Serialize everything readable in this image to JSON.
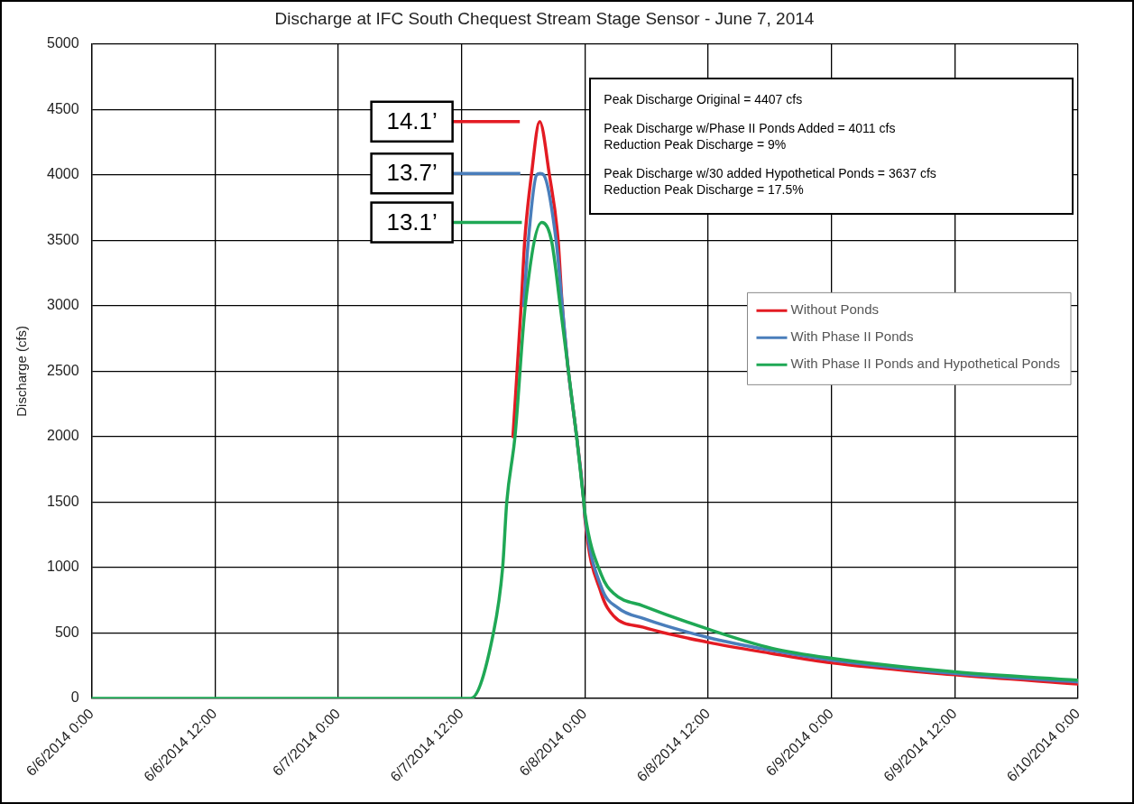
{
  "chart_data": {
    "type": "line",
    "title": "Discharge at IFC South Chequest Stream Stage Sensor - June 7, 2014",
    "ylabel": "Discharge (cfs)",
    "xlim": [
      "2014-06-06T00:00",
      "2014-06-10T00:00"
    ],
    "xticks": [
      {
        "value": "2014-06-06T00:00",
        "label": "6/6/2014 0:00"
      },
      {
        "value": "2014-06-06T12:00",
        "label": "6/6/2014 12:00"
      },
      {
        "value": "2014-06-07T00:00",
        "label": "6/7/2014 0:00"
      },
      {
        "value": "2014-06-07T12:00",
        "label": "6/7/2014 12:00"
      },
      {
        "value": "2014-06-08T00:00",
        "label": "6/8/2014 0:00"
      },
      {
        "value": "2014-06-08T12:00",
        "label": "6/8/2014 12:00"
      },
      {
        "value": "2014-06-09T00:00",
        "label": "6/9/2014 0:00"
      },
      {
        "value": "2014-06-09T12:00",
        "label": "6/9/2014 12:00"
      },
      {
        "value": "2014-06-10T00:00",
        "label": "6/10/2014 0:00"
      }
    ],
    "ylim": [
      0,
      5000
    ],
    "yticks": [
      0,
      500,
      1000,
      1500,
      2000,
      2500,
      3000,
      3500,
      4000,
      4500,
      5000
    ],
    "grid": true,
    "legend": "right",
    "marker": "none",
    "line_style": "solid",
    "series": [
      {
        "name": "Without Ponds",
        "color": "#e31b23",
        "x": [
          "2014-06-07T17:00",
          "2014-06-07T17:48",
          "2014-06-07T18:09",
          "2014-06-07T18:48",
          "2014-06-07T19:36",
          "2014-06-07T20:33",
          "2014-06-07T21:24",
          "2014-06-07T21:48",
          "2014-06-07T22:24",
          "2014-06-07T23:12",
          "2014-06-07T23:54",
          "2014-06-08T00:00",
          "2014-06-08T01:36",
          "2014-06-08T02:48",
          "2014-06-08T05:42",
          "2014-06-08T12:00",
          "2014-06-08T18:12",
          "2014-06-09T00:00",
          "2014-06-09T12:00",
          "2014-06-10T00:00"
        ],
        "values": [
          2000,
          3000,
          3500,
          4000,
          4407,
          4000,
          3500,
          3000,
          2500,
          2000,
          1500,
          1380,
          802,
          630,
          543,
          428,
          343,
          271,
          180,
          110
        ]
      },
      {
        "name": "With Phase II Ponds",
        "color": "#4a7ebb",
        "x": [
          "2014-06-07T18:03",
          "2014-06-07T18:30",
          "2014-06-07T19:18",
          "2014-06-07T19:39",
          "2014-06-07T20:00",
          "2014-06-07T21:12",
          "2014-06-07T21:48",
          "2014-06-07T22:24",
          "2014-06-07T23:12",
          "2014-06-07T23:54",
          "2014-06-08T00:00",
          "2014-06-08T01:36",
          "2014-06-08T03:15",
          "2014-06-08T05:42",
          "2014-06-08T12:00",
          "2014-06-08T18:12",
          "2014-06-09T00:00",
          "2014-06-09T12:00",
          "2014-06-10T00:00"
        ],
        "values": [
          3000,
          3500,
          4000,
          4011,
          4000,
          3500,
          3000,
          2500,
          2000,
          1500,
          1400,
          850,
          690,
          610,
          465,
          366,
          292,
          190,
          125
        ]
      },
      {
        "name": "With Phase II Ponds and Hypothetical Ponds",
        "color": "#1fa855",
        "x": [
          "2014-06-06T00:00",
          "2014-06-07T12:00",
          "2014-06-07T12:54",
          "2014-06-07T15:06",
          "2014-06-07T16:00",
          "2014-06-07T16:24",
          "2014-06-07T17:12",
          "2014-06-07T18:12",
          "2014-06-07T19:48",
          "2014-06-07T20:45",
          "2014-06-07T21:36",
          "2014-06-07T22:24",
          "2014-06-07T23:12",
          "2014-06-07T23:54",
          "2014-06-08T00:00",
          "2014-06-08T01:36",
          "2014-06-08T02:48",
          "2014-06-08T05:42",
          "2014-06-08T12:00",
          "2014-06-08T18:12",
          "2014-06-09T00:00",
          "2014-06-09T12:00",
          "2014-06-10T00:00"
        ],
        "values": [
          0,
          0,
          0,
          500,
          1000,
          1500,
          2000,
          3000,
          3637,
          3500,
          3000,
          2500,
          2000,
          1500,
          1420,
          945,
          802,
          706,
          529,
          383,
          306,
          203,
          139
        ]
      }
    ],
    "annotations": [
      "14.1’",
      "13.7’",
      "13.1’",
      "Peak Discharge Original = 4407 cfs",
      "Peak Discharge w/Phase II Ponds Added = 4011 cfs",
      "Reduction Peak Discharge = 9%",
      "Peak Discharge w/30 added Hypothetical Ponds = 3637 cfs",
      "Reduction Peak Discharge = 17.5%"
    ]
  }
}
